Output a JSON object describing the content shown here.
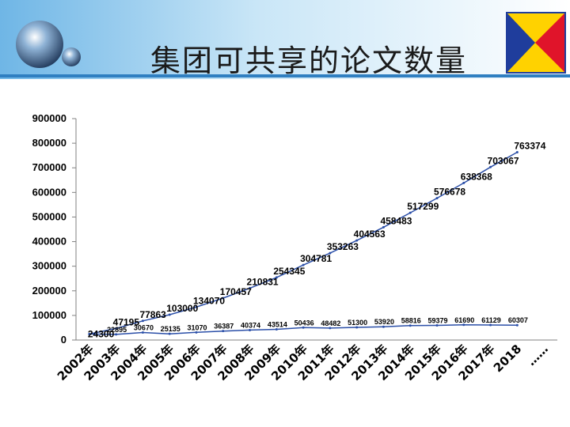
{
  "slide": {
    "title": "集团可共享的论文数量",
    "colors": {
      "header_bg": "#4a9fd8",
      "header_light": "#c9e6f7",
      "logo_blue": "#1f3d9c",
      "logo_red": "#e0142a",
      "logo_yellow": "#ffd200",
      "line": "#2b4fa8"
    },
    "icons": [
      "globe-logo-icon",
      "brand-flag-logo-icon"
    ]
  },
  "chart_data": {
    "type": "line",
    "ylim": [
      0,
      900000
    ],
    "yticks": [
      0,
      100000,
      200000,
      300000,
      400000,
      500000,
      600000,
      700000,
      800000,
      900000
    ],
    "x_labels": [
      "2002年",
      "2003年",
      "2004年",
      "2005年",
      "2006年",
      "2007年",
      "2008年",
      "2009年",
      "2010年",
      "2011年",
      "2012年",
      "2013年",
      "2014年",
      "2015年",
      "2016年",
      "2017年",
      "2018",
      "……"
    ],
    "grid": false,
    "legend": "none",
    "series": [
      {
        "values": [
          24300,
          47195,
          77863,
          103000,
          134070,
          170457,
          210831,
          254345,
          304781,
          353263,
          404563,
          458483,
          517299,
          576678,
          638368,
          703067,
          763374
        ],
        "labels": [
          "24300",
          "47195",
          "77863",
          "103000",
          "134070",
          "170457",
          "210831",
          "254345",
          "304781",
          "353263",
          "404563",
          "458483",
          "517299",
          "576678",
          "638368",
          "703067",
          "763374"
        ]
      },
      {
        "values": [
          24300,
          22895,
          30670,
          25135,
          31070,
          36387,
          40374,
          43514,
          50436,
          48482,
          51300,
          53920,
          58816,
          59379,
          61690,
          61129,
          60307
        ],
        "labels": [
          "24300",
          "22895",
          "30670",
          "25135",
          "31070",
          "36387",
          "40374",
          "43514",
          "50436",
          "48482",
          "51300",
          "53920",
          "58816",
          "59379",
          "61690",
          "61129",
          "60307"
        ]
      }
    ]
  }
}
